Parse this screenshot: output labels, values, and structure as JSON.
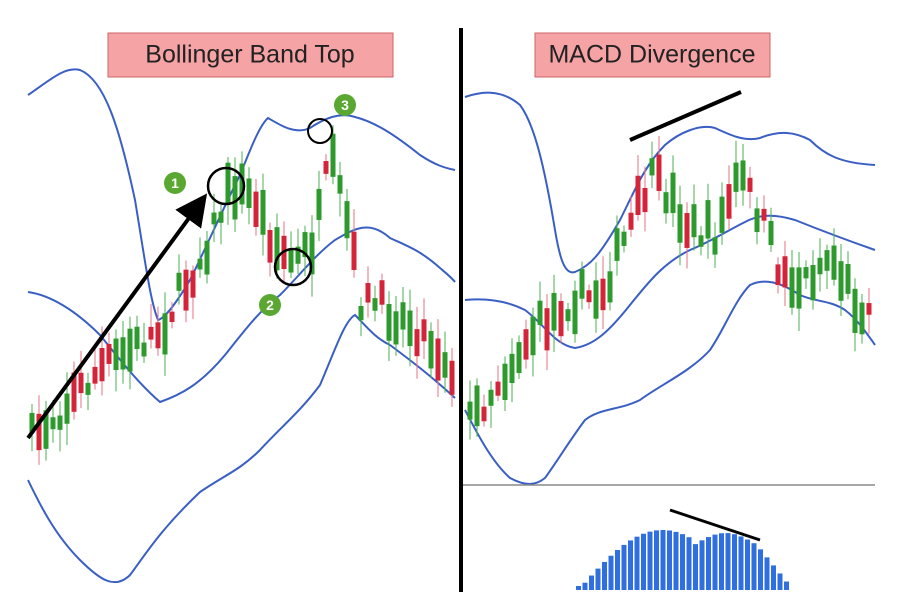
{
  "panels": [
    {
      "title": "Bollinger Band Top",
      "badges": [
        "1",
        "2",
        "3"
      ]
    },
    {
      "title": "MACD Divergence"
    }
  ]
}
